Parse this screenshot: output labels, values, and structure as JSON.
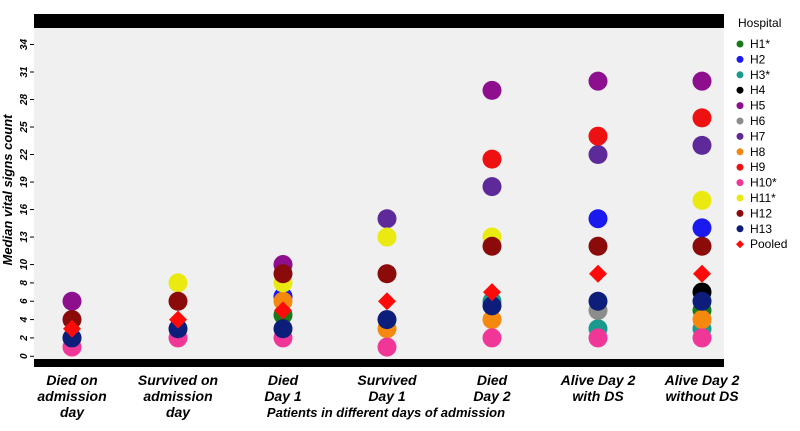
{
  "chart_data": {
    "type": "scatter",
    "xlabel": "Patients in different days of admission",
    "ylabel": "Median vital signs count",
    "ylim": [
      -0.3,
      35.8
    ],
    "y_ticks": [
      0,
      2,
      4,
      6,
      8,
      10,
      13,
      16,
      19,
      22,
      25,
      28,
      31,
      34
    ],
    "grid": false,
    "legend_title": "Hospital",
    "legend_position": "right",
    "categories": [
      [
        "Died on",
        "admission",
        "day"
      ],
      [
        "Survived on",
        "admission",
        "day"
      ],
      [
        "Died",
        "Day 1"
      ],
      [
        "Survived",
        "Day 1"
      ],
      [
        "Died",
        "Day 2"
      ],
      [
        "Alive Day 2",
        "with DS"
      ],
      [
        "Alive Day 2",
        "without DS"
      ]
    ],
    "series": [
      {
        "name": "H1*",
        "color": "#1a7a1a",
        "marker": "circle",
        "values": [
          null,
          null,
          4.5,
          null,
          null,
          null,
          5
        ]
      },
      {
        "name": "H2",
        "color": "#1a1aee",
        "marker": "circle",
        "values": [
          null,
          null,
          6.5,
          null,
          null,
          15,
          14
        ]
      },
      {
        "name": "H3*",
        "color": "#1a9a8f",
        "marker": "circle",
        "values": [
          2,
          null,
          null,
          null,
          6,
          3,
          3
        ]
      },
      {
        "name": "H4",
        "color": "#000000",
        "marker": "circle",
        "values": [
          null,
          null,
          null,
          null,
          null,
          null,
          7
        ]
      },
      {
        "name": "H5",
        "color": "#8e0f8e",
        "marker": "circle",
        "values": [
          6,
          null,
          10,
          null,
          29,
          30,
          30
        ]
      },
      {
        "name": "H6",
        "color": "#8c8c8c",
        "marker": "circle",
        "values": [
          null,
          null,
          null,
          null,
          null,
          5,
          null
        ]
      },
      {
        "name": "H7",
        "color": "#5e2a9a",
        "marker": "circle",
        "values": [
          null,
          null,
          null,
          15,
          18.5,
          22,
          23
        ]
      },
      {
        "name": "H8",
        "color": "#f5890f",
        "marker": "circle",
        "values": [
          null,
          null,
          6,
          3,
          4,
          null,
          4
        ]
      },
      {
        "name": "H9",
        "color": "#ee1111",
        "marker": "circle",
        "values": [
          null,
          null,
          null,
          null,
          21.5,
          24,
          26
        ]
      },
      {
        "name": "H10*",
        "color": "#f03797",
        "marker": "circle",
        "values": [
          1,
          2,
          2,
          1,
          2,
          2,
          2
        ]
      },
      {
        "name": "H11*",
        "color": "#eaea10",
        "marker": "circle",
        "values": [
          null,
          8,
          8,
          13,
          13,
          null,
          17
        ]
      },
      {
        "name": "H12",
        "color": "#8b0a0a",
        "marker": "circle",
        "values": [
          4,
          6,
          9,
          9,
          12,
          12,
          12
        ]
      },
      {
        "name": "H13",
        "color": "#0d1e7a",
        "marker": "circle",
        "values": [
          2,
          3,
          3,
          4,
          5.5,
          6,
          6
        ]
      },
      {
        "name": "Pooled",
        "color": "#ff0a0a",
        "marker": "diamond",
        "values": [
          3,
          4,
          5,
          6,
          7,
          9,
          9
        ]
      }
    ]
  }
}
